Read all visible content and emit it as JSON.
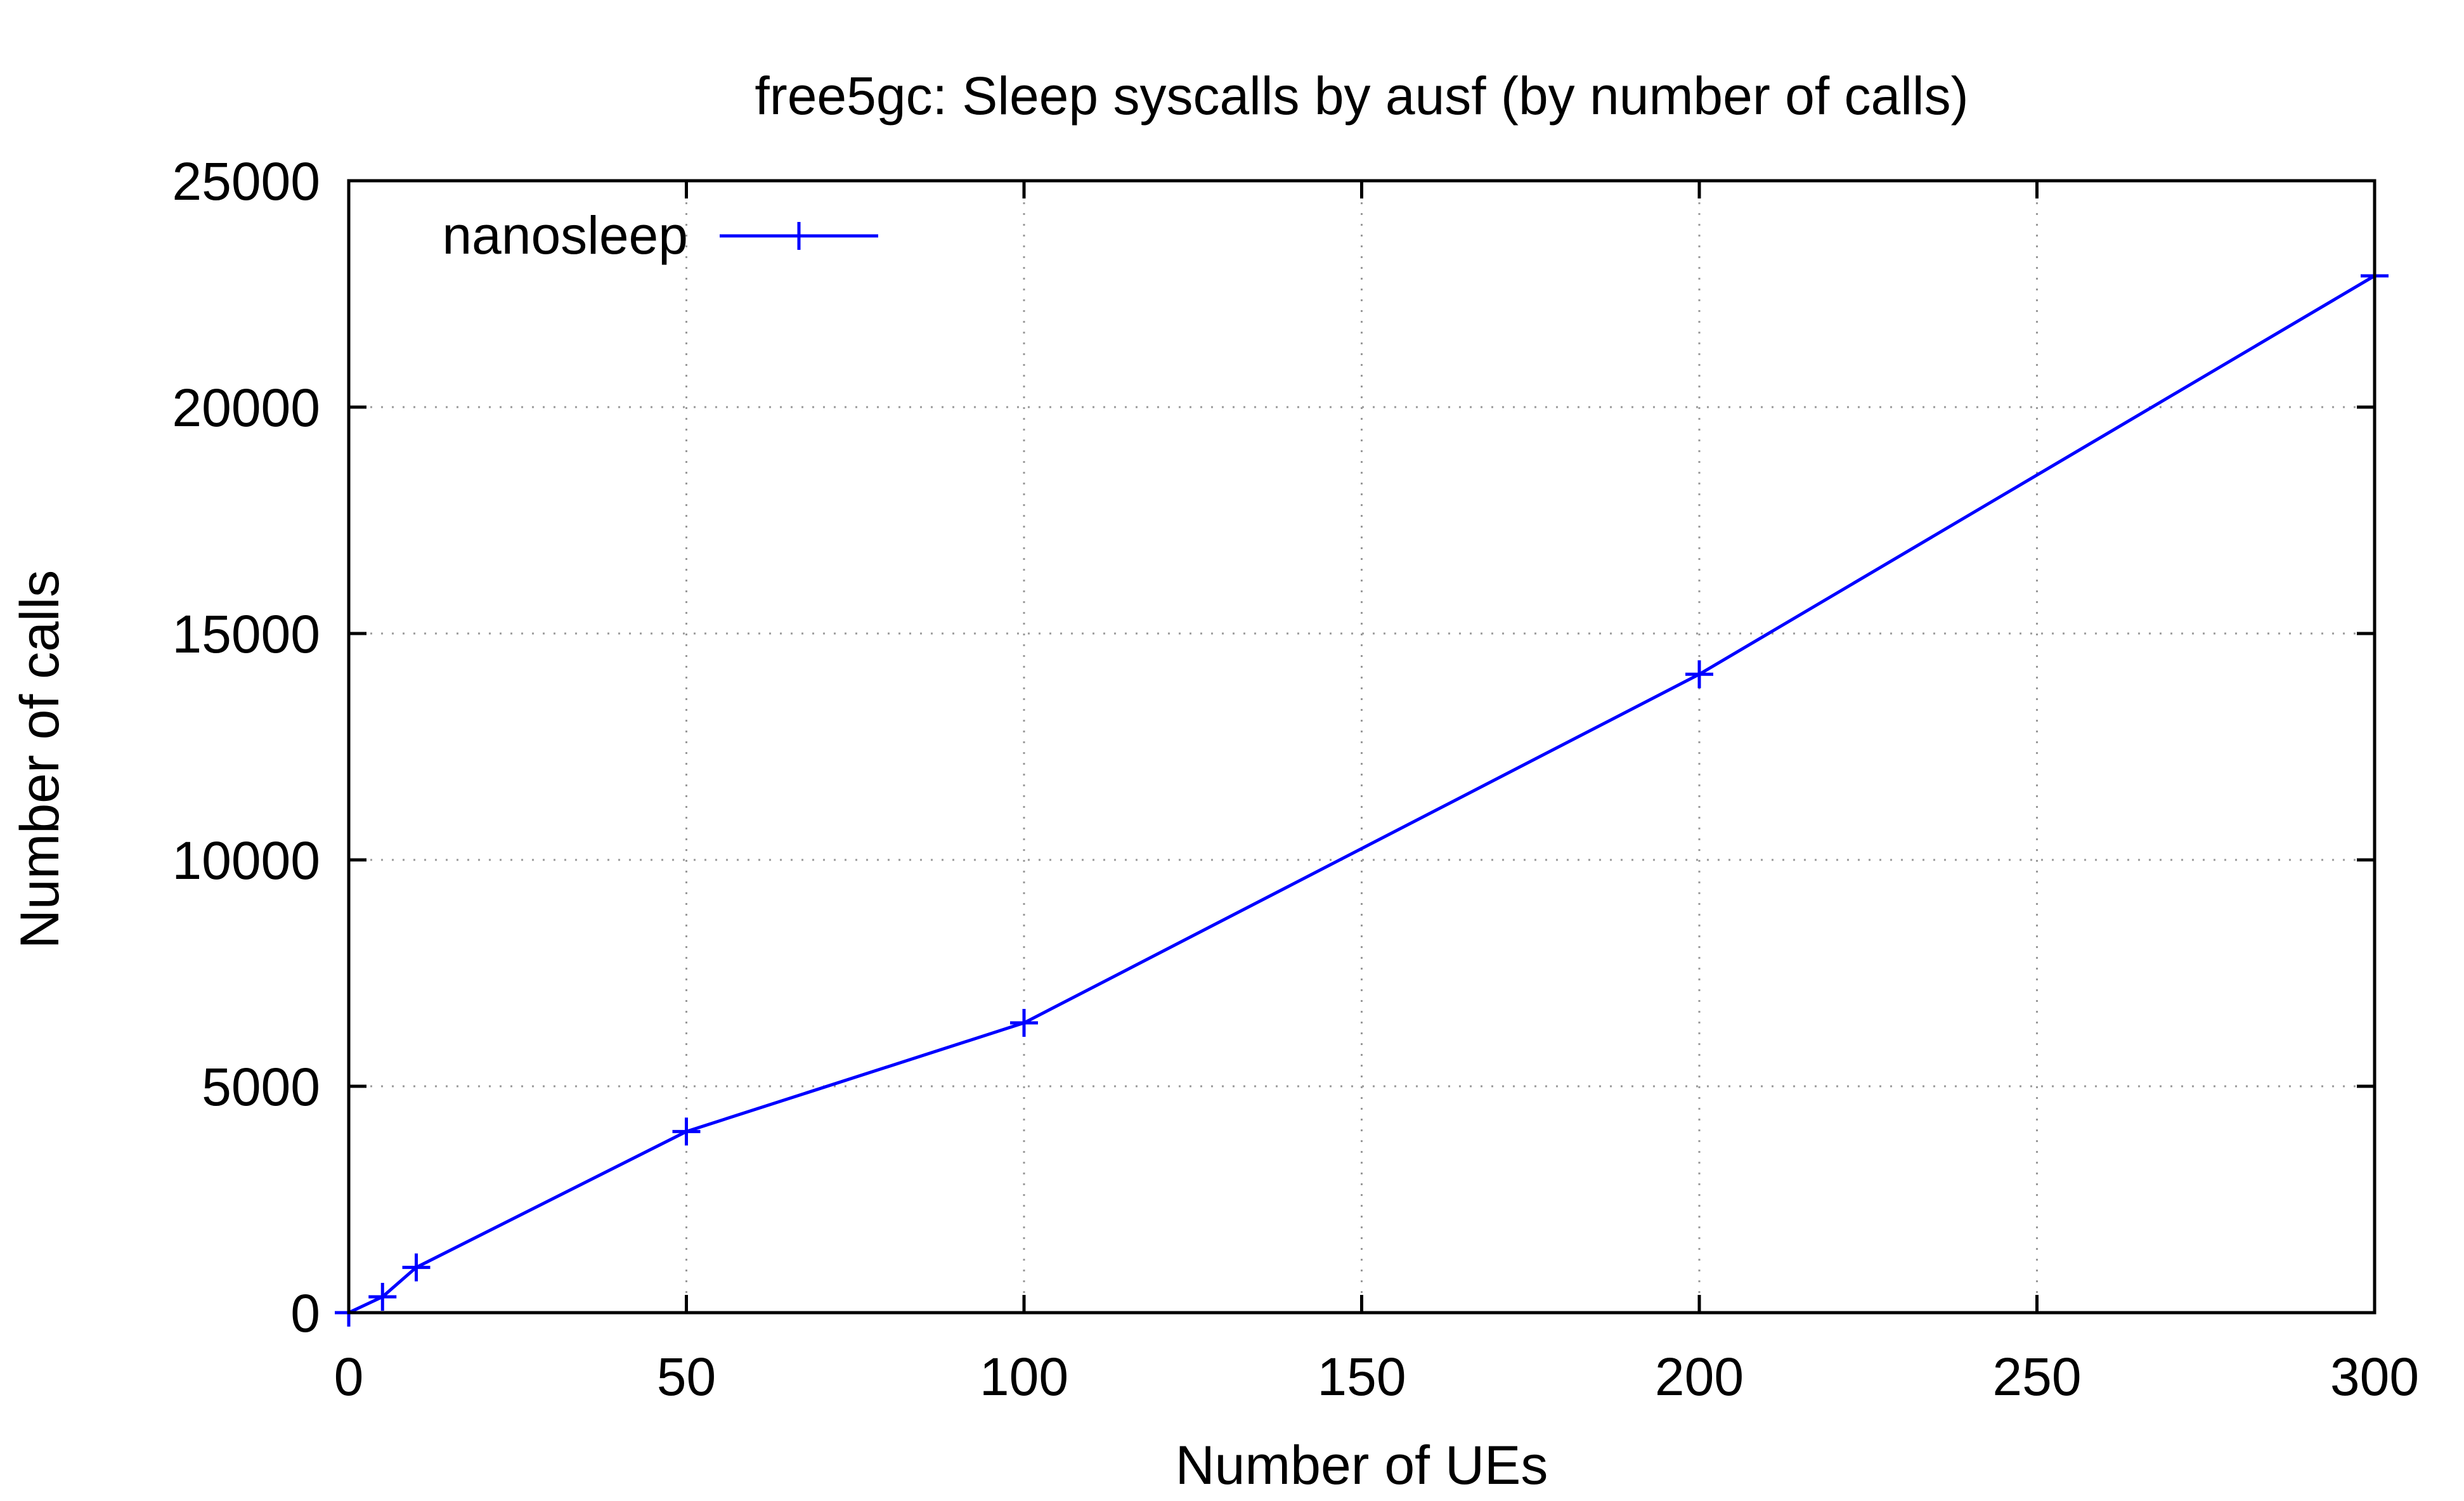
{
  "chart_data": {
    "type": "line",
    "title": "free5gc: Sleep syscalls by ausf (by number of calls)",
    "xlabel": "Number of UEs",
    "ylabel": "Number of calls",
    "xlim": [
      0,
      300
    ],
    "ylim": [
      0,
      25000
    ],
    "xticks": [
      "0",
      "50",
      "100",
      "150",
      "200",
      "250",
      "300"
    ],
    "yticks": [
      "0",
      "5000",
      "10000",
      "15000",
      "20000",
      "25000"
    ],
    "grid": true,
    "legend_position": "top-left",
    "series": [
      {
        "name": "nanosleep",
        "color": "#0000ff",
        "marker": "plus",
        "x": [
          0,
          5,
          10,
          50,
          100,
          200,
          300
        ],
        "y": [
          0,
          350,
          1000,
          4000,
          6400,
          14100,
          22900
        ]
      }
    ]
  }
}
